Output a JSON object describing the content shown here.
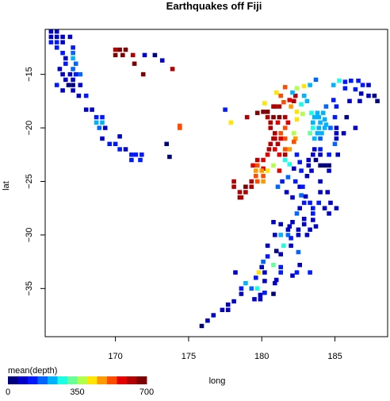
{
  "chart_data": {
    "type": "heatmap",
    "title": "Earthquakes off Fiji",
    "xlabel": "long",
    "ylabel": "lat",
    "xlim": [
      165.2,
      188.6
    ],
    "ylim": [
      -39.5,
      -10.8
    ],
    "x_ticks": [
      170,
      175,
      180,
      185
    ],
    "y_ticks": [
      -15,
      -20,
      -25,
      -30,
      -35
    ],
    "bin_size": {
      "x": 0.36,
      "y": 0.5
    },
    "colorbar": {
      "title": "mean(depth)",
      "range": [
        0,
        700
      ],
      "tick_labels": [
        "0",
        "350",
        "700"
      ],
      "palette": [
        "#00007f",
        "#0000c8",
        "#0019ff",
        "#0066ff",
        "#00b2ff",
        "#19ffe5",
        "#66ff99",
        "#b2ff4c",
        "#ffe500",
        "#ff9900",
        "#ff4c00",
        "#e50000",
        "#b20000",
        "#7f0000"
      ]
    },
    "cells": [
      [
        165.6,
        -11.0,
        60
      ],
      [
        166.0,
        -11.0,
        60
      ],
      [
        165.6,
        -11.5,
        70
      ],
      [
        166.0,
        -11.5,
        80
      ],
      [
        166.4,
        -11.5,
        60
      ],
      [
        166.9,
        -11.5,
        80
      ],
      [
        165.6,
        -12.0,
        100
      ],
      [
        166.0,
        -12.0,
        120
      ],
      [
        166.4,
        -12.0,
        90
      ],
      [
        167.1,
        -12.5,
        120
      ],
      [
        166.0,
        -12.5,
        110
      ],
      [
        166.4,
        -13.0,
        100
      ],
      [
        167.1,
        -13.0,
        180
      ],
      [
        166.6,
        -13.5,
        80
      ],
      [
        167.1,
        -13.5,
        200
      ],
      [
        167.3,
        -14.0,
        190
      ],
      [
        166.6,
        -14.0,
        100
      ],
      [
        167.1,
        -14.5,
        150
      ],
      [
        167.3,
        -15.0,
        130
      ],
      [
        166.9,
        -15.0,
        70
      ],
      [
        167.1,
        -15.5,
        60
      ],
      [
        166.6,
        -15.5,
        60
      ],
      [
        166.8,
        -16.0,
        40
      ],
      [
        167.1,
        -16.0,
        30
      ],
      [
        167.1,
        -16.5,
        60
      ],
      [
        166.4,
        -16.5,
        80
      ],
      [
        167.6,
        -15.0,
        190
      ],
      [
        167.6,
        -16.0,
        90
      ],
      [
        166.4,
        -15.0,
        90
      ],
      [
        166.2,
        -14.5,
        90
      ],
      [
        166.0,
        -16.0,
        100
      ],
      [
        167.5,
        -17.0,
        80
      ],
      [
        168.0,
        -17.0,
        100
      ],
      [
        168.0,
        -18.3,
        60
      ],
      [
        168.4,
        -18.3,
        90
      ],
      [
        168.7,
        -19.0,
        120
      ],
      [
        169.1,
        -19.0,
        100
      ],
      [
        168.7,
        -19.5,
        220
      ],
      [
        169.1,
        -19.5,
        230
      ],
      [
        168.9,
        -20.0,
        180
      ],
      [
        169.3,
        -20.0,
        90
      ],
      [
        169.1,
        -21.0,
        80
      ],
      [
        169.6,
        -21.5,
        130
      ],
      [
        170.0,
        -21.5,
        120
      ],
      [
        170.3,
        -22.0,
        110
      ],
      [
        170.7,
        -22.0,
        60
      ],
      [
        171.1,
        -22.5,
        140
      ],
      [
        171.4,
        -22.5,
        140
      ],
      [
        171.8,
        -22.5,
        140
      ],
      [
        171.1,
        -23.0,
        110
      ],
      [
        171.7,
        -23.0,
        110
      ],
      [
        173.5,
        -21.5,
        40
      ],
      [
        173.7,
        -22.7,
        30
      ],
      [
        174.4,
        -20.0,
        510
      ],
      [
        174.4,
        -19.8,
        510
      ],
      [
        170.3,
        -20.8,
        80
      ],
      [
        170.0,
        -12.7,
        640
      ],
      [
        170.3,
        -12.7,
        650
      ],
      [
        170.7,
        -12.7,
        680
      ],
      [
        171.2,
        -13.2,
        640
      ],
      [
        170.0,
        -13.2,
        650
      ],
      [
        170.5,
        -13.2,
        660
      ],
      [
        172.0,
        -13.2,
        90
      ],
      [
        172.7,
        -13.2,
        40
      ],
      [
        173.2,
        -13.7,
        60
      ],
      [
        171.9,
        -15.0,
        700
      ],
      [
        173.9,
        -14.5,
        630
      ],
      [
        171.3,
        -14.0,
        670
      ],
      [
        175.9,
        -38.5,
        40
      ],
      [
        176.3,
        -38.0,
        60
      ],
      [
        176.7,
        -37.5,
        80
      ],
      [
        177.3,
        -37.0,
        60
      ],
      [
        177.7,
        -36.5,
        70
      ],
      [
        177.7,
        -37.0,
        60
      ],
      [
        178.1,
        -36.2,
        70
      ],
      [
        178.6,
        -35.5,
        60
      ],
      [
        178.2,
        -33.5,
        80
      ],
      [
        178.6,
        -35.0,
        120
      ],
      [
        177.5,
        -18.3,
        100
      ],
      [
        177.9,
        -19.5,
        430
      ],
      [
        179.0,
        -19.0,
        610
      ],
      [
        179.7,
        -18.6,
        650
      ],
      [
        180.1,
        -18.5,
        650
      ],
      [
        180.4,
        -18.5,
        660
      ],
      [
        180.8,
        -18.0,
        600
      ],
      [
        181.2,
        -18.0,
        640
      ],
      [
        180.4,
        -19.0,
        640
      ],
      [
        180.8,
        -19.0,
        650
      ],
      [
        181.2,
        -19.0,
        650
      ],
      [
        181.6,
        -19.0,
        610
      ],
      [
        180.6,
        -19.5,
        600
      ],
      [
        181.1,
        -19.5,
        560
      ],
      [
        180.6,
        -20.0,
        610
      ],
      [
        180.9,
        -20.5,
        620
      ],
      [
        181.3,
        -20.5,
        520
      ],
      [
        181.6,
        -20.0,
        500
      ],
      [
        181.8,
        -19.5,
        590
      ],
      [
        181.6,
        -21.0,
        520
      ],
      [
        181.3,
        -21.0,
        590
      ],
      [
        180.9,
        -21.0,
        620
      ],
      [
        180.6,
        -21.5,
        610
      ],
      [
        181.1,
        -21.5,
        620
      ],
      [
        180.5,
        -22.0,
        630
      ],
      [
        180.9,
        -22.0,
        590
      ],
      [
        180.4,
        -22.5,
        590
      ],
      [
        180.1,
        -23.0,
        560
      ],
      [
        179.7,
        -23.0,
        600
      ],
      [
        179.4,
        -23.5,
        590
      ],
      [
        179.7,
        -23.5,
        540
      ],
      [
        180.1,
        -23.8,
        550
      ],
      [
        179.6,
        -24.0,
        480
      ],
      [
        180.0,
        -24.0,
        480
      ],
      [
        179.6,
        -24.5,
        500
      ],
      [
        179.7,
        -25.0,
        500
      ],
      [
        180.1,
        -25.0,
        480
      ],
      [
        180.1,
        -24.5,
        530
      ],
      [
        179.3,
        -25.0,
        600
      ],
      [
        178.9,
        -25.5,
        680
      ],
      [
        179.3,
        -25.5,
        600
      ],
      [
        178.5,
        -26.0,
        620
      ],
      [
        178.9,
        -26.0,
        640
      ],
      [
        178.5,
        -26.5,
        670
      ],
      [
        178.1,
        -25.0,
        640
      ],
      [
        178.1,
        -25.5,
        610
      ],
      [
        178.6,
        -26.5,
        620
      ],
      [
        180.4,
        -24.0,
        400
      ],
      [
        180.8,
        -23.5,
        390
      ],
      [
        181.2,
        -24.0,
        560
      ],
      [
        181.2,
        -22.5,
        560
      ],
      [
        180.8,
        -21.0,
        610
      ],
      [
        181.6,
        -22.5,
        600
      ],
      [
        181.9,
        -22.0,
        450
      ],
      [
        182.0,
        -18.0,
        460
      ],
      [
        182.4,
        -18.5,
        420
      ],
      [
        182.8,
        -18.7,
        390
      ],
      [
        182.4,
        -19.2,
        410
      ],
      [
        182.2,
        -20.5,
        380
      ],
      [
        182.3,
        -21.0,
        480
      ],
      [
        182.2,
        -21.3,
        520
      ],
      [
        181.6,
        -22.0,
        510
      ],
      [
        181.3,
        -17.0,
        500
      ],
      [
        181.9,
        -17.4,
        560
      ],
      [
        182.3,
        -17.0,
        630
      ],
      [
        182.2,
        -17.5,
        600
      ],
      [
        181.5,
        -17.6,
        520
      ],
      [
        180.9,
        -18.0,
        620
      ],
      [
        180.2,
        -17.7,
        430
      ],
      [
        181.0,
        -16.7,
        420
      ],
      [
        181.6,
        -16.2,
        510
      ],
      [
        182.4,
        -16.3,
        380
      ],
      [
        182.9,
        -16.1,
        420
      ],
      [
        183.3,
        -16.0,
        210
      ],
      [
        183.7,
        -15.5,
        160
      ],
      [
        182.1,
        -16.7,
        240
      ],
      [
        182.9,
        -17.0,
        240
      ],
      [
        182.7,
        -17.8,
        280
      ],
      [
        183.1,
        -17.5,
        220
      ],
      [
        183.4,
        -18.6,
        280
      ],
      [
        183.8,
        -18.6,
        200
      ],
      [
        184.2,
        -18.6,
        200
      ],
      [
        183.6,
        -19.0,
        240
      ],
      [
        183.9,
        -19.0,
        220
      ],
      [
        184.3,
        -19.2,
        220
      ],
      [
        183.5,
        -19.5,
        210
      ],
      [
        184.0,
        -19.5,
        220
      ],
      [
        184.4,
        -19.7,
        220
      ],
      [
        183.9,
        -20.0,
        220
      ],
      [
        184.3,
        -20.0,
        230
      ],
      [
        183.5,
        -20.0,
        270
      ],
      [
        183.3,
        -20.5,
        330
      ],
      [
        183.8,
        -20.5,
        240
      ],
      [
        184.1,
        -20.5,
        210
      ],
      [
        183.6,
        -21.0,
        240
      ],
      [
        184.0,
        -21.0,
        180
      ],
      [
        184.7,
        -20.0,
        150
      ],
      [
        185.0,
        -19.0,
        110
      ],
      [
        185.1,
        -20.0,
        90
      ],
      [
        184.4,
        -18.0,
        180
      ],
      [
        185.1,
        -18.0,
        130
      ],
      [
        184.9,
        -17.4,
        100
      ],
      [
        184.9,
        -16.0,
        200
      ],
      [
        185.3,
        -15.6,
        260
      ],
      [
        185.7,
        -15.7,
        130
      ],
      [
        186.1,
        -15.6,
        130
      ],
      [
        186.6,
        -15.6,
        140
      ],
      [
        186.9,
        -16.0,
        140
      ],
      [
        187.3,
        -16.0,
        90
      ],
      [
        185.7,
        -16.3,
        120
      ],
      [
        186.4,
        -16.4,
        110
      ],
      [
        186.8,
        -16.8,
        80
      ],
      [
        187.3,
        -17.0,
        60
      ],
      [
        187.7,
        -17.0,
        40
      ],
      [
        187.9,
        -17.5,
        40
      ],
      [
        186.0,
        -17.5,
        50
      ],
      [
        186.7,
        -17.5,
        80
      ],
      [
        185.8,
        -19.0,
        40
      ],
      [
        185.1,
        -20.5,
        70
      ],
      [
        185.6,
        -20.5,
        60
      ],
      [
        186.4,
        -20.0,
        60
      ],
      [
        185.1,
        -21.0,
        60
      ],
      [
        183.6,
        -22.0,
        90
      ],
      [
        184.0,
        -22.0,
        100
      ],
      [
        183.5,
        -22.5,
        60
      ],
      [
        184.0,
        -22.5,
        70
      ],
      [
        184.6,
        -22.5,
        110
      ],
      [
        185.0,
        -21.5,
        150
      ],
      [
        185.2,
        -22.5,
        60
      ],
      [
        183.2,
        -23.0,
        50
      ],
      [
        183.7,
        -23.0,
        40
      ],
      [
        184.0,
        -23.5,
        20
      ],
      [
        184.3,
        -23.5,
        30
      ],
      [
        184.6,
        -23.5,
        30
      ],
      [
        183.2,
        -23.5,
        60
      ],
      [
        182.6,
        -23.2,
        120
      ],
      [
        182.4,
        -22.5,
        100
      ],
      [
        181.6,
        -23.0,
        290
      ],
      [
        181.9,
        -23.4,
        260
      ],
      [
        182.2,
        -23.8,
        80
      ],
      [
        182.7,
        -24.0,
        120
      ],
      [
        183.4,
        -24.0,
        90
      ],
      [
        184.6,
        -24.0,
        90
      ],
      [
        181.4,
        -25.0,
        140
      ],
      [
        181.8,
        -24.6,
        160
      ],
      [
        182.3,
        -25.0,
        100
      ],
      [
        182.6,
        -25.5,
        60
      ],
      [
        183.1,
        -24.5,
        80
      ],
      [
        181.1,
        -25.5,
        180
      ],
      [
        181.7,
        -26.0,
        60
      ],
      [
        182.1,
        -26.5,
        80
      ],
      [
        182.7,
        -26.3,
        180
      ],
      [
        183.0,
        -26.4,
        60
      ],
      [
        184.0,
        -26.0,
        80
      ],
      [
        184.5,
        -26.0,
        60
      ],
      [
        182.9,
        -27.0,
        140
      ],
      [
        183.3,
        -27.0,
        130
      ],
      [
        183.5,
        -27.5,
        100
      ],
      [
        183.5,
        -28.0,
        120
      ],
      [
        182.6,
        -27.5,
        90
      ],
      [
        182.4,
        -28.0,
        160
      ],
      [
        183.9,
        -27.0,
        110
      ],
      [
        184.7,
        -27.0,
        70
      ],
      [
        184.3,
        -27.5,
        60
      ],
      [
        185.1,
        -27.5,
        60
      ],
      [
        184.6,
        -28.0,
        60
      ],
      [
        183.5,
        -28.6,
        80
      ],
      [
        182.9,
        -28.5,
        70
      ],
      [
        182.1,
        -28.8,
        60
      ],
      [
        182.9,
        -29.0,
        90
      ],
      [
        181.9,
        -29.2,
        50
      ],
      [
        182.5,
        -29.5,
        60
      ],
      [
        183.3,
        -29.5,
        70
      ],
      [
        183.7,
        -29.2,
        60
      ],
      [
        180.8,
        -28.8,
        60
      ],
      [
        181.3,
        -29.0,
        70
      ],
      [
        181.8,
        -29.5,
        50
      ],
      [
        180.9,
        -30.0,
        80
      ],
      [
        181.3,
        -30.0,
        200
      ],
      [
        181.8,
        -30.0,
        190
      ],
      [
        182.0,
        -30.3,
        120
      ],
      [
        182.5,
        -30.0,
        70
      ],
      [
        183.1,
        -30.0,
        90
      ],
      [
        181.5,
        -31.0,
        250
      ],
      [
        182.0,
        -31.0,
        60
      ],
      [
        181.0,
        -31.5,
        40
      ],
      [
        181.3,
        -31.8,
        80
      ],
      [
        182.5,
        -31.6,
        170
      ],
      [
        180.4,
        -31.0,
        90
      ],
      [
        180.4,
        -32.0,
        120
      ],
      [
        180.1,
        -32.5,
        160
      ],
      [
        180.8,
        -32.8,
        300
      ],
      [
        181.3,
        -33.0,
        110
      ],
      [
        180.0,
        -33.0,
        80
      ],
      [
        179.8,
        -33.5,
        410
      ],
      [
        180.2,
        -33.5,
        90
      ],
      [
        181.3,
        -33.5,
        140
      ],
      [
        181.0,
        -34.2,
        60
      ],
      [
        179.6,
        -34.0,
        120
      ],
      [
        180.2,
        -34.3,
        90
      ],
      [
        180.9,
        -34.5,
        80
      ],
      [
        178.9,
        -34.5,
        200
      ],
      [
        179.7,
        -35.0,
        250
      ],
      [
        179.3,
        -35.0,
        180
      ],
      [
        180.2,
        -35.4,
        120
      ],
      [
        180.8,
        -35.5,
        40
      ],
      [
        179.9,
        -35.6,
        60
      ],
      [
        179.5,
        -36.0,
        60
      ],
      [
        179.9,
        -36.0,
        70
      ],
      [
        182.1,
        -33.8,
        60
      ],
      [
        182.4,
        -33.5,
        110
      ],
      [
        182.6,
        -32.8,
        60
      ],
      [
        183.3,
        -33.5,
        110
      ],
      [
        182.8,
        -25.5,
        120
      ],
      [
        184.0,
        -25.0,
        80
      ]
    ]
  }
}
